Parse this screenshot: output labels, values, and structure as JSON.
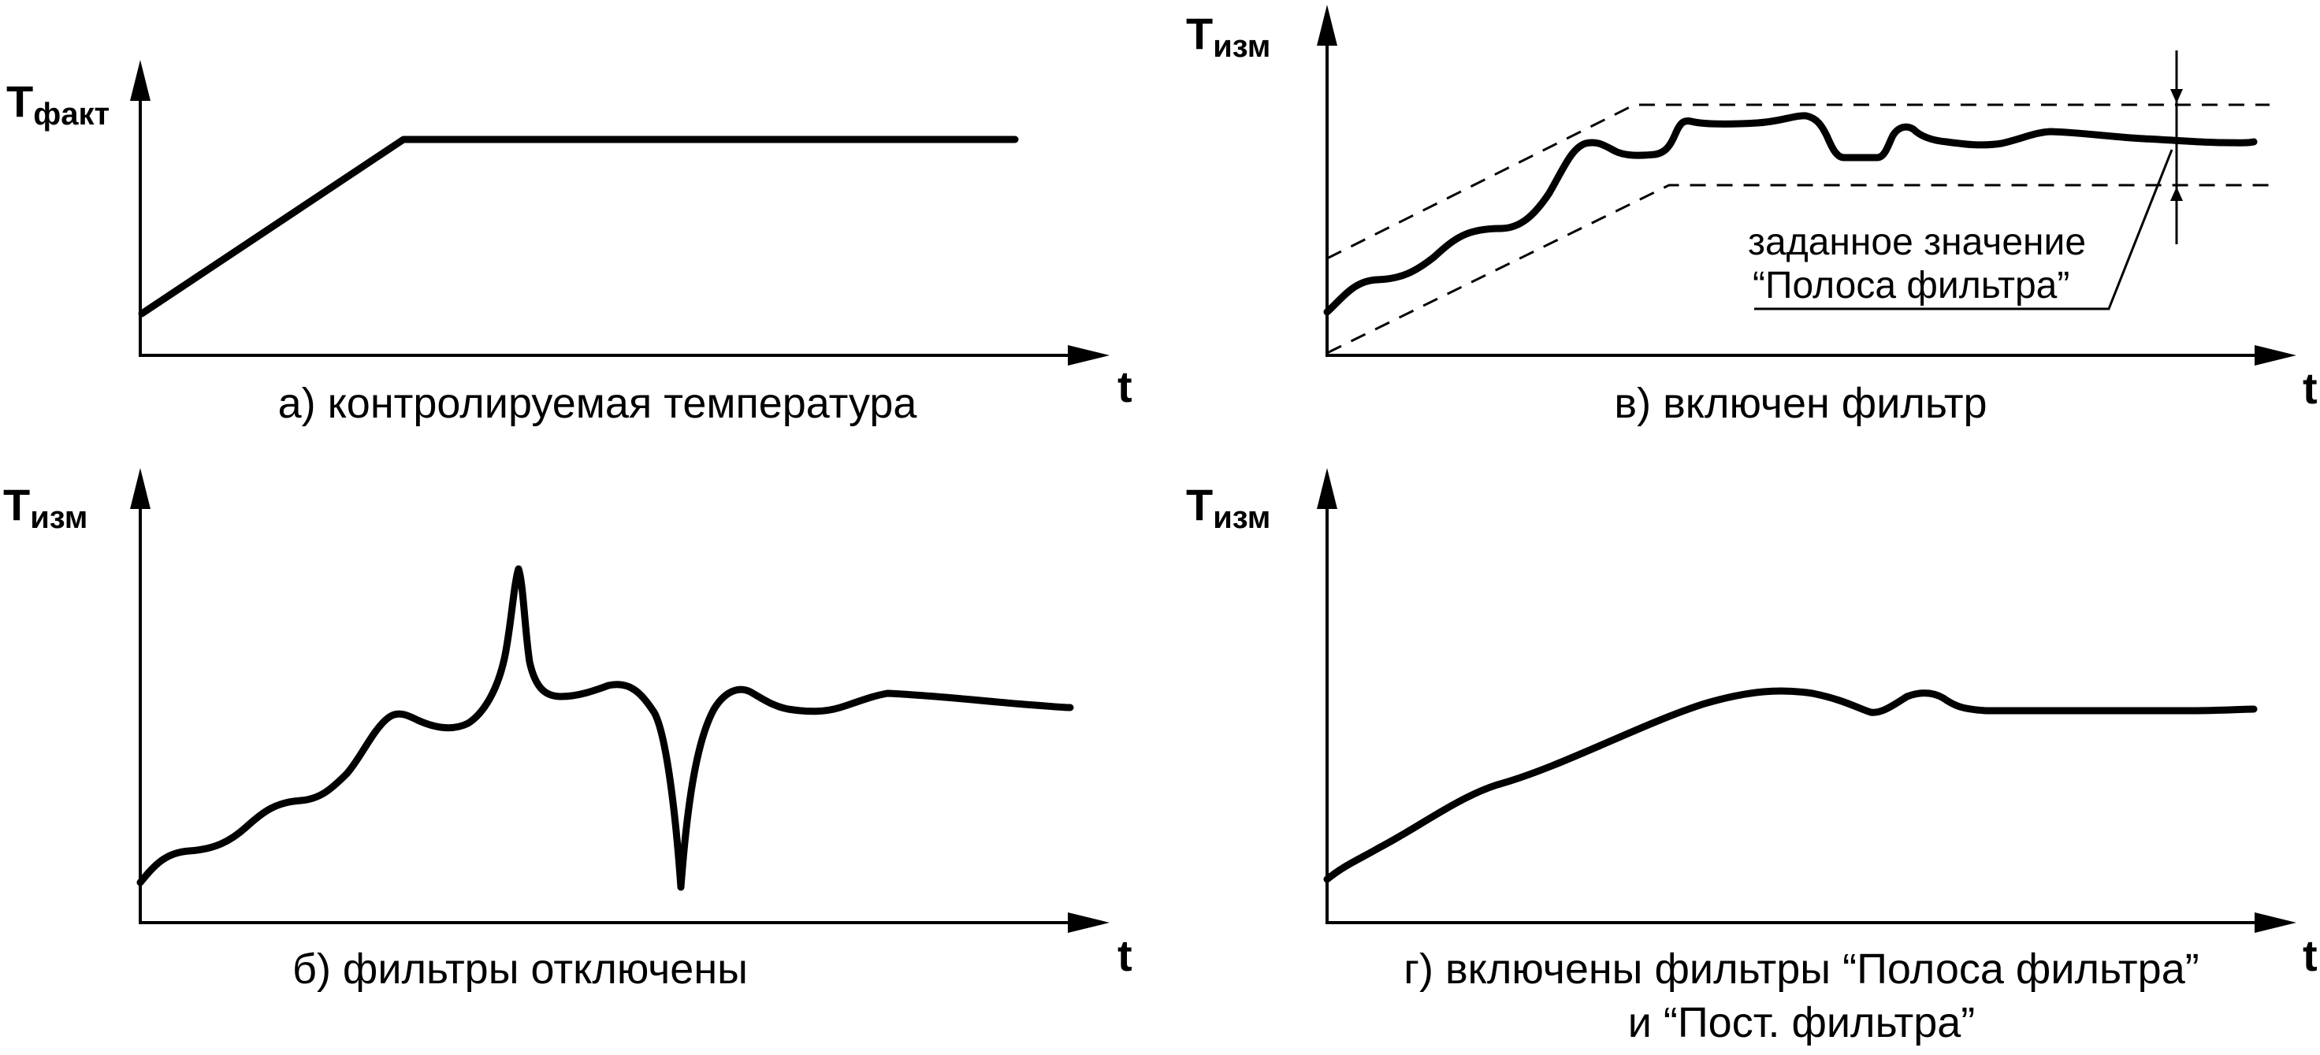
{
  "panels": {
    "a": {
      "y_label_main": "Т",
      "y_label_sub": "факт",
      "x_label": "t",
      "caption": "а) контролируемая температура"
    },
    "v": {
      "y_label_main": "Т",
      "y_label_sub": "изм",
      "x_label": "t",
      "caption": "в) включен фильтр",
      "annotation_line1": "заданное значение",
      "annotation_line2": "“Полоса фильтра”"
    },
    "b": {
      "y_label_main": "Т",
      "y_label_sub": "изм",
      "x_label": "t",
      "caption": "б) фильтры отключены"
    },
    "g": {
      "y_label_main": "Т",
      "y_label_sub": "изм",
      "x_label": "t",
      "caption_line1": "г) включены фильтры “Полоса фильтра”",
      "caption_line2": "и “Пост. фильтра”"
    }
  }
}
